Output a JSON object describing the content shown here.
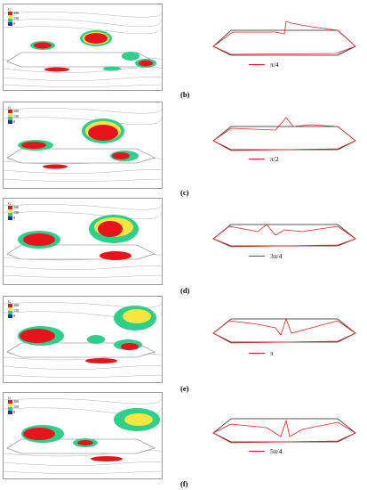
{
  "legend": {
    "title": "G",
    "labels": [
      "300",
      "150",
      "0"
    ],
    "colors": [
      "#e8141c",
      "#f7e640",
      "#2ecf8a",
      "#1730c8"
    ]
  },
  "rows": [
    {
      "sublabel": "(b)",
      "key": "π/4"
    },
    {
      "sublabel": "(c)",
      "key": "π/2"
    },
    {
      "sublabel": "(d)",
      "key": "3π/4"
    },
    {
      "sublabel": "(e)",
      "key": "π"
    },
    {
      "sublabel": "(f)",
      "key": "5π/4"
    }
  ],
  "colors": {
    "reference_outline": "#222222",
    "deformed_outline": "#e02020",
    "streamline": "#a8a8a8"
  }
}
